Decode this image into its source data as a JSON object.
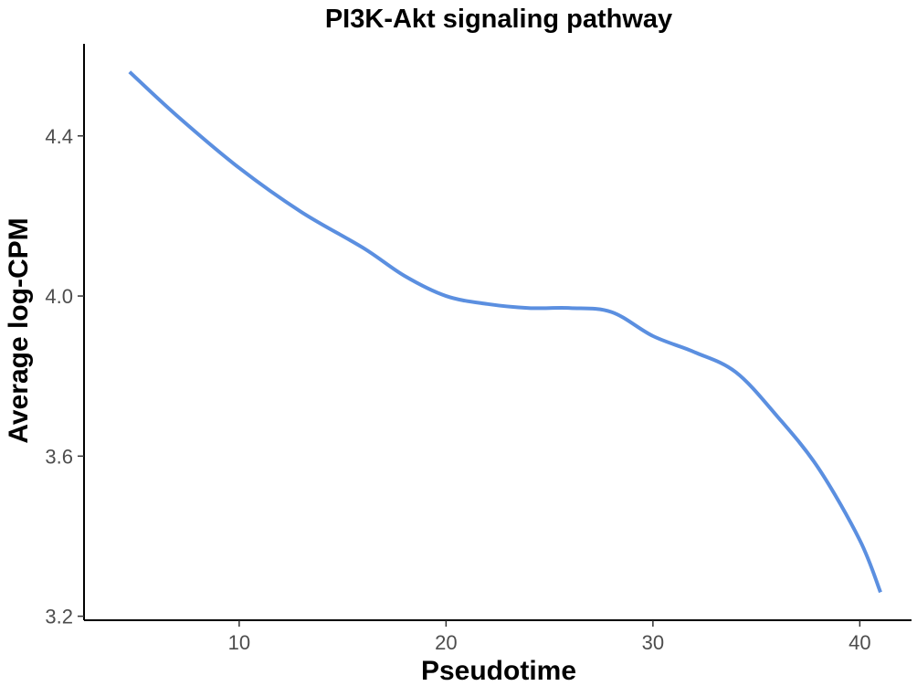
{
  "chart_data": {
    "type": "line",
    "title": "PI3K-Akt signaling pathway",
    "xlabel": "Pseudotime",
    "ylabel": "Average log-CPM",
    "xlim": [
      2.5,
      42.5
    ],
    "ylim": [
      3.19,
      4.63
    ],
    "x_ticks": [
      10,
      20,
      30,
      40
    ],
    "y_ticks": [
      3.2,
      3.6,
      4.0,
      4.4
    ],
    "x_tick_labels": [
      "10",
      "20",
      "30",
      "40"
    ],
    "y_tick_labels": [
      "3.2",
      "3.6",
      "4.0",
      "4.4"
    ],
    "grid": false,
    "legend": "none",
    "series": [
      {
        "color": "#5b8fe0",
        "x": [
          4.7,
          7,
          10,
          13,
          16,
          18,
          20,
          22,
          24,
          26,
          28,
          30,
          32,
          34,
          36,
          38,
          40,
          41
        ],
        "y": [
          4.56,
          4.45,
          4.32,
          4.21,
          4.12,
          4.05,
          4.0,
          3.98,
          3.97,
          3.97,
          3.96,
          3.9,
          3.86,
          3.81,
          3.7,
          3.57,
          3.39,
          3.26
        ]
      }
    ]
  }
}
